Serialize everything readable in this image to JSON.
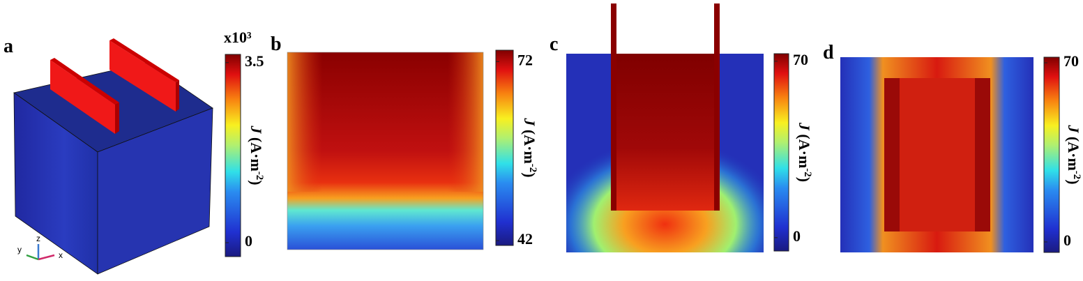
{
  "panels": [
    {
      "label": "a",
      "colorbar": {
        "multiplier": "x10³",
        "lim": [
          -0.27,
          3.66
        ],
        "ticks": [
          3.5,
          0
        ]
      },
      "axis_triad": {
        "x": "x",
        "y": "y",
        "z": "z"
      }
    },
    {
      "label": "b",
      "colorbar": {
        "lim": [
          41.2,
          73.9
        ],
        "ticks": [
          72,
          42
        ]
      }
    },
    {
      "label": "c",
      "colorbar": {
        "lim": [
          -5.3,
          73
        ],
        "ticks": [
          70,
          0
        ]
      }
    },
    {
      "label": "d",
      "colorbar": {
        "lim": [
          -4.1,
          72.2
        ],
        "ticks": [
          70,
          0
        ]
      }
    }
  ],
  "colorbar_label": {
    "symbol": "J",
    "unit": " (A·m",
    "exponent": "-2",
    "close": ")"
  }
}
